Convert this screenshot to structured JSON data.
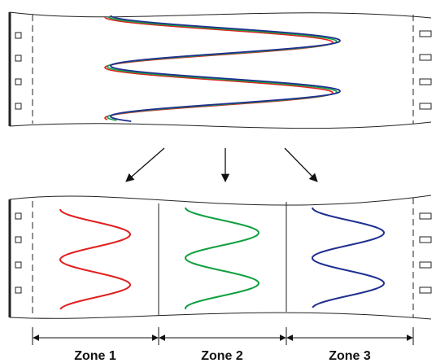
{
  "labels": [
    "Zone 1",
    "Zone 2",
    "Zone 3"
  ]
}
